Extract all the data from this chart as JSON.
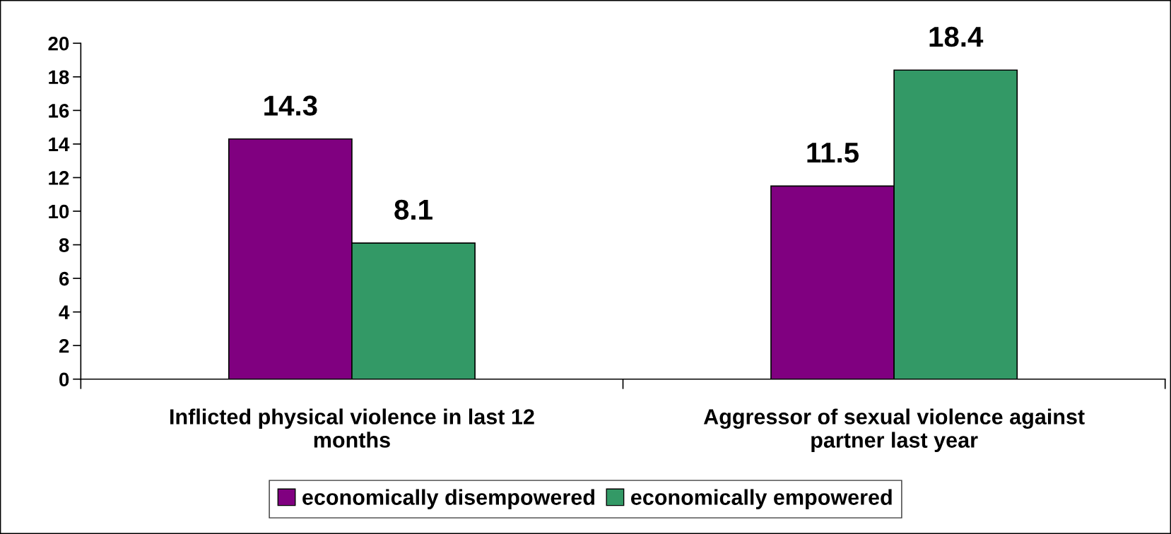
{
  "chart_data": {
    "type": "bar",
    "categories": [
      "Inflicted physical violence in last 12\nmonths",
      "Aggressor of sexual violence against\npartner last year"
    ],
    "series": [
      {
        "name": "economically disempowered",
        "color": "#800080",
        "values": [
          14.3,
          11.5
        ]
      },
      {
        "name": "economically empowered",
        "color": "#339966",
        "values": [
          8.1,
          18.4
        ]
      }
    ],
    "ylim": [
      0,
      20
    ],
    "yticks": [
      0,
      2,
      4,
      6,
      8,
      10,
      12,
      14,
      16,
      18,
      20
    ],
    "data_labels": true,
    "grid": false,
    "legend": "bottom"
  }
}
